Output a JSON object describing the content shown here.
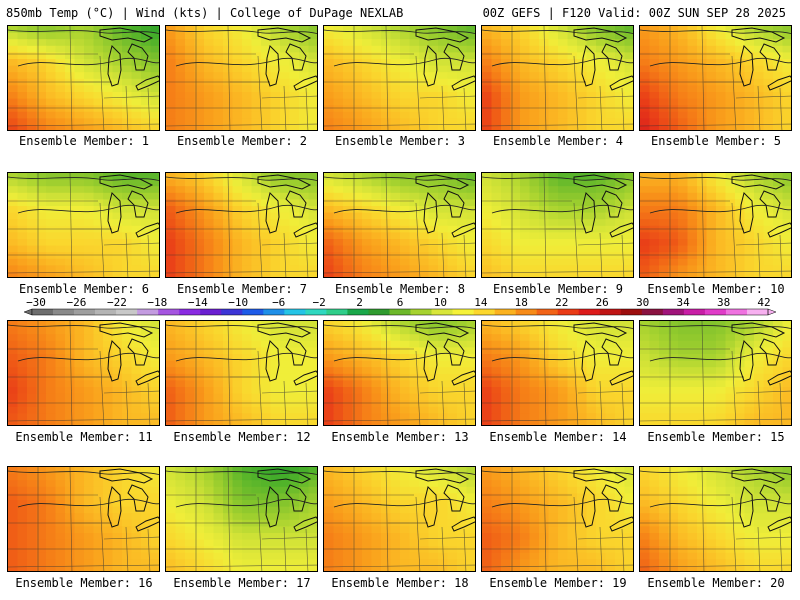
{
  "header": {
    "left": "850mb Temp (°C) | Wind (kts) | College of DuPage NEXLAB",
    "right": "00Z GEFS | F120 Valid: 00Z SUN SEP 28 2025"
  },
  "colorbar": {
    "labels": [
      "-30",
      "-26",
      "-22",
      "-18",
      "-14",
      "-10",
      "-6",
      "-2",
      "2",
      "6",
      "10",
      "14",
      "18",
      "22",
      "26",
      "30",
      "34",
      "38",
      "42"
    ],
    "colors": [
      "#6e6e6e",
      "#8a8a8a",
      "#9f9f9f",
      "#b4b4b4",
      "#c8c8c8",
      "#c39be0",
      "#a555e0",
      "#8a2be2",
      "#6a1fd1",
      "#3d35d6",
      "#1e5be8",
      "#1f8fe8",
      "#25c4e6",
      "#2fd8c0",
      "#2fce8a",
      "#1aa84a",
      "#2f9b2f",
      "#6db82a",
      "#a6d22f",
      "#d8e63a",
      "#f5f239",
      "#fcd72d",
      "#fbb21f",
      "#f78b18",
      "#f26317",
      "#ea3b16",
      "#dd1b1b",
      "#c01515",
      "#9d0e0e",
      "#8a1240",
      "#a0147a",
      "#c81ea6",
      "#e03cc8",
      "#ef72e0",
      "#f7b0f0"
    ]
  },
  "panels": [
    {
      "label": "Ensemble Member: 1",
      "temp": [
        [
          10,
          8,
          10,
          6,
          4
        ],
        [
          18,
          16,
          12,
          10,
          8
        ],
        [
          22,
          18,
          16,
          14,
          12
        ],
        [
          26,
          22,
          20,
          18,
          16
        ]
      ]
    },
    {
      "label": "Ensemble Member: 2",
      "temp": [
        [
          20,
          16,
          14,
          10,
          8
        ],
        [
          22,
          18,
          16,
          14,
          12
        ],
        [
          22,
          20,
          18,
          16,
          14
        ],
        [
          22,
          20,
          18,
          16,
          14
        ]
      ]
    },
    {
      "label": "Ensemble Member: 3",
      "temp": [
        [
          14,
          12,
          10,
          8,
          6
        ],
        [
          18,
          16,
          14,
          12,
          12
        ],
        [
          20,
          18,
          16,
          16,
          14
        ],
        [
          22,
          20,
          18,
          16,
          16
        ]
      ]
    },
    {
      "label": "Ensemble Member: 4",
      "temp": [
        [
          18,
          16,
          12,
          8,
          6
        ],
        [
          22,
          18,
          16,
          14,
          12
        ],
        [
          26,
          20,
          18,
          16,
          14
        ],
        [
          26,
          20,
          18,
          16,
          16
        ]
      ]
    },
    {
      "label": "Ensemble Member: 5",
      "temp": [
        [
          20,
          18,
          14,
          10,
          8
        ],
        [
          22,
          20,
          18,
          16,
          14
        ],
        [
          26,
          22,
          20,
          18,
          16
        ],
        [
          28,
          24,
          20,
          18,
          16
        ]
      ]
    },
    {
      "label": "Ensemble Member: 6",
      "temp": [
        [
          10,
          8,
          8,
          6,
          6
        ],
        [
          16,
          14,
          14,
          12,
          12
        ],
        [
          18,
          16,
          16,
          16,
          14
        ],
        [
          22,
          20,
          18,
          16,
          16
        ]
      ]
    },
    {
      "label": "Ensemble Member: 7",
      "temp": [
        [
          18,
          16,
          12,
          8,
          8
        ],
        [
          24,
          20,
          16,
          14,
          12
        ],
        [
          26,
          22,
          18,
          16,
          14
        ],
        [
          26,
          22,
          18,
          16,
          16
        ]
      ]
    },
    {
      "label": "Ensemble Member: 8",
      "temp": [
        [
          12,
          10,
          8,
          8,
          6
        ],
        [
          18,
          16,
          14,
          12,
          12
        ],
        [
          24,
          20,
          18,
          16,
          14
        ],
        [
          26,
          22,
          20,
          18,
          16
        ]
      ]
    },
    {
      "label": "Ensemble Member: 9",
      "temp": [
        [
          12,
          10,
          6,
          6,
          8
        ],
        [
          14,
          12,
          10,
          10,
          12
        ],
        [
          16,
          14,
          14,
          14,
          14
        ],
        [
          18,
          16,
          16,
          16,
          16
        ]
      ]
    },
    {
      "label": "Ensemble Member: 10",
      "temp": [
        [
          18,
          18,
          14,
          10,
          8
        ],
        [
          22,
          22,
          18,
          14,
          12
        ],
        [
          26,
          24,
          18,
          16,
          14
        ],
        [
          24,
          20,
          18,
          16,
          16
        ]
      ]
    },
    {
      "label": "Ensemble Member: 11",
      "temp": [
        [
          22,
          20,
          18,
          14,
          12
        ],
        [
          24,
          22,
          18,
          16,
          14
        ],
        [
          26,
          22,
          20,
          18,
          16
        ],
        [
          24,
          22,
          20,
          18,
          18
        ]
      ]
    },
    {
      "label": "Ensemble Member: 12",
      "temp": [
        [
          18,
          16,
          14,
          12,
          12
        ],
        [
          20,
          18,
          16,
          14,
          14
        ],
        [
          24,
          20,
          16,
          14,
          14
        ],
        [
          24,
          20,
          18,
          16,
          16
        ]
      ]
    },
    {
      "label": "Ensemble Member: 13",
      "temp": [
        [
          16,
          14,
          10,
          8,
          10
        ],
        [
          20,
          18,
          16,
          14,
          14
        ],
        [
          26,
          22,
          18,
          16,
          16
        ],
        [
          26,
          22,
          20,
          18,
          16
        ]
      ]
    },
    {
      "label": "Ensemble Member: 14",
      "temp": [
        [
          18,
          16,
          14,
          12,
          12
        ],
        [
          22,
          20,
          16,
          14,
          14
        ],
        [
          26,
          22,
          20,
          16,
          16
        ],
        [
          26,
          22,
          20,
          18,
          16
        ]
      ]
    },
    {
      "label": "Ensemble Member: 15",
      "temp": [
        [
          10,
          8,
          8,
          10,
          14
        ],
        [
          12,
          10,
          10,
          14,
          16
        ],
        [
          14,
          14,
          14,
          16,
          18
        ],
        [
          16,
          16,
          16,
          18,
          18
        ]
      ]
    },
    {
      "label": "Ensemble Member: 16",
      "temp": [
        [
          22,
          20,
          18,
          16,
          14
        ],
        [
          24,
          22,
          18,
          16,
          16
        ],
        [
          24,
          22,
          20,
          18,
          16
        ],
        [
          24,
          22,
          20,
          18,
          18
        ]
      ]
    },
    {
      "label": "Ensemble Member: 17",
      "temp": [
        [
          12,
          10,
          6,
          4,
          6
        ],
        [
          14,
          12,
          8,
          8,
          10
        ],
        [
          16,
          14,
          12,
          12,
          12
        ],
        [
          18,
          16,
          14,
          14,
          14
        ]
      ]
    },
    {
      "label": "Ensemble Member: 18",
      "temp": [
        [
          18,
          16,
          14,
          12,
          10
        ],
        [
          20,
          18,
          16,
          16,
          14
        ],
        [
          22,
          20,
          18,
          16,
          16
        ],
        [
          22,
          20,
          18,
          18,
          16
        ]
      ]
    },
    {
      "label": "Ensemble Member: 19",
      "temp": [
        [
          20,
          18,
          16,
          14,
          12
        ],
        [
          22,
          20,
          18,
          16,
          14
        ],
        [
          24,
          22,
          18,
          16,
          16
        ],
        [
          24,
          20,
          18,
          18,
          16
        ]
      ]
    },
    {
      "label": "Ensemble Member: 20",
      "temp": [
        [
          16,
          14,
          12,
          10,
          8
        ],
        [
          18,
          16,
          14,
          12,
          12
        ],
        [
          22,
          18,
          16,
          14,
          14
        ],
        [
          24,
          20,
          18,
          16,
          16
        ]
      ]
    }
  ]
}
